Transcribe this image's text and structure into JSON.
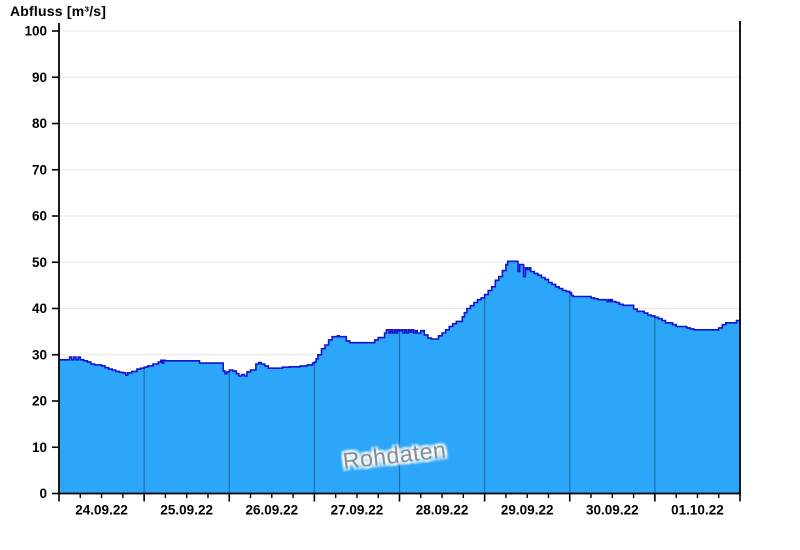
{
  "page": {
    "background": "#ffffff"
  },
  "chart_data": {
    "type": "area",
    "title": "Abfluss [m³/s]",
    "watermark": "Rohdaten",
    "ylabel": "Abfluss [m³/s]",
    "xlabel": "",
    "ylim": [
      0,
      100
    ],
    "y_tick_step": 10,
    "y_tick_labels": [
      "0",
      "10",
      "20",
      "30",
      "40",
      "50",
      "60",
      "70",
      "80",
      "90",
      "100"
    ],
    "x_tick_labels": [
      "24.09.22",
      "25.09.22",
      "26.09.22",
      "27.09.22",
      "28.09.22",
      "29.09.22",
      "30.09.22",
      "01.10.22"
    ],
    "x_days_total": 8,
    "x_minor_ticks_per_day": 4,
    "grid": "horizontal-light",
    "legend": "none",
    "colors": {
      "fill": "#2BA6F8",
      "line": "#1313CF",
      "day_separator": "#1F6FAE",
      "grid": "#E8E8E8",
      "axis": "#000000",
      "watermark": "#8C8C8C",
      "background": "#FFFFFF"
    },
    "series": [
      {
        "name": "Abfluss Rohdaten",
        "unit": "m³/s",
        "interpolation": "step-after",
        "x_unit": "hours since 24.09.22 00:00",
        "points": [
          [
            0,
            28.9
          ],
          [
            2,
            28.9
          ],
          [
            3,
            29.5
          ],
          [
            3.6,
            28.9
          ],
          [
            4.2,
            29.5
          ],
          [
            4.8,
            28.9
          ],
          [
            5.4,
            29.5
          ],
          [
            6,
            28.9
          ],
          [
            7,
            28.7
          ],
          [
            8,
            28.4
          ],
          [
            9,
            28.0
          ],
          [
            10,
            27.8
          ],
          [
            11,
            27.8
          ],
          [
            12,
            27.6
          ],
          [
            13,
            27.2
          ],
          [
            14,
            26.9
          ],
          [
            15,
            26.7
          ],
          [
            16,
            26.4
          ],
          [
            17,
            26.2
          ],
          [
            18,
            26.1
          ],
          [
            18.8,
            25.6
          ],
          [
            19.4,
            26.1
          ],
          [
            20.5,
            26.4
          ],
          [
            22,
            26.9
          ],
          [
            23,
            27.1
          ],
          [
            24,
            27.3
          ],
          [
            25,
            27.6
          ],
          [
            26.5,
            28.0
          ],
          [
            28,
            28.4
          ],
          [
            28.7,
            28.8
          ],
          [
            29.1,
            28.2
          ],
          [
            29.5,
            28.8
          ],
          [
            30,
            28.7
          ],
          [
            33,
            28.7
          ],
          [
            36,
            28.7
          ],
          [
            39,
            28.7
          ],
          [
            39.6,
            28.2
          ],
          [
            42,
            28.2
          ],
          [
            45.5,
            28.2
          ],
          [
            46.3,
            26.5
          ],
          [
            46.8,
            25.9
          ],
          [
            47.3,
            26.3
          ],
          [
            48,
            26.7
          ],
          [
            49,
            26.5
          ],
          [
            50,
            25.9
          ],
          [
            50.7,
            25.4
          ],
          [
            51.5,
            25.7
          ],
          [
            52.3,
            25.4
          ],
          [
            53,
            26.3
          ],
          [
            54,
            26.7
          ],
          [
            55.5,
            28.0
          ],
          [
            56.3,
            28.3
          ],
          [
            57,
            28.0
          ],
          [
            58,
            27.6
          ],
          [
            59,
            27.1
          ],
          [
            61,
            27.1
          ],
          [
            63,
            27.3
          ],
          [
            65,
            27.4
          ],
          [
            68,
            27.6
          ],
          [
            70,
            27.8
          ],
          [
            71.5,
            28.2
          ],
          [
            72,
            28.4
          ],
          [
            72.5,
            29.1
          ],
          [
            73,
            30.0
          ],
          [
            74,
            31.3
          ],
          [
            75,
            32.1
          ],
          [
            76,
            33.2
          ],
          [
            77,
            33.9
          ],
          [
            78,
            33.9
          ],
          [
            78.5,
            34.1
          ],
          [
            79,
            33.9
          ],
          [
            80,
            33.9
          ],
          [
            81,
            33.0
          ],
          [
            82,
            32.6
          ],
          [
            85,
            32.6
          ],
          [
            88,
            32.6
          ],
          [
            89,
            33.2
          ],
          [
            90,
            33.7
          ],
          [
            91,
            33.7
          ],
          [
            91.8,
            34.7
          ],
          [
            92.3,
            35.4
          ],
          [
            93,
            34.7
          ],
          [
            93.5,
            35.4
          ],
          [
            94,
            34.7
          ],
          [
            94.5,
            35.4
          ],
          [
            95,
            34.7
          ],
          [
            95.5,
            35.4
          ],
          [
            96,
            35.2
          ],
          [
            96.5,
            35.4
          ],
          [
            97,
            34.7
          ],
          [
            97.5,
            35.4
          ],
          [
            98,
            34.7
          ],
          [
            98.5,
            35.4
          ],
          [
            99,
            34.9
          ],
          [
            99.5,
            35.4
          ],
          [
            100,
            34.7
          ],
          [
            100.5,
            35.2
          ],
          [
            101,
            34.7
          ],
          [
            102,
            35.2
          ],
          [
            103,
            34.3
          ],
          [
            104,
            33.6
          ],
          [
            105,
            33.4
          ],
          [
            106,
            33.4
          ],
          [
            107,
            34.1
          ],
          [
            108,
            34.7
          ],
          [
            109,
            35.4
          ],
          [
            110,
            36.1
          ],
          [
            111,
            36.7
          ],
          [
            112,
            37.2
          ],
          [
            113,
            37.2
          ],
          [
            113.7,
            38.2
          ],
          [
            114.3,
            39.1
          ],
          [
            115,
            40.0
          ],
          [
            116,
            40.6
          ],
          [
            117,
            41.3
          ],
          [
            118,
            41.9
          ],
          [
            119,
            42.3
          ],
          [
            120,
            43.0
          ],
          [
            121,
            43.9
          ],
          [
            122,
            44.7
          ],
          [
            123,
            46.1
          ],
          [
            124,
            46.9
          ],
          [
            125,
            48.2
          ],
          [
            126,
            49.5
          ],
          [
            126.5,
            50.2
          ],
          [
            128,
            50.2
          ],
          [
            129,
            50.2
          ],
          [
            129.4,
            48.0
          ],
          [
            129.9,
            49.5
          ],
          [
            130.5,
            49.5
          ],
          [
            131,
            46.9
          ],
          [
            131.5,
            48.8
          ],
          [
            132,
            48.4
          ],
          [
            132.5,
            48.8
          ],
          [
            133,
            48.0
          ],
          [
            134,
            47.6
          ],
          [
            135,
            47.2
          ],
          [
            136,
            46.7
          ],
          [
            137,
            46.3
          ],
          [
            138,
            45.6
          ],
          [
            139,
            45.2
          ],
          [
            140,
            44.7
          ],
          [
            141,
            44.3
          ],
          [
            142,
            43.9
          ],
          [
            143,
            43.7
          ],
          [
            144,
            43.4
          ],
          [
            144.5,
            42.8
          ],
          [
            145,
            42.6
          ],
          [
            147,
            42.6
          ],
          [
            149,
            42.6
          ],
          [
            150,
            42.3
          ],
          [
            151,
            42.1
          ],
          [
            152,
            41.9
          ],
          [
            154,
            41.9
          ],
          [
            154.5,
            41.5
          ],
          [
            155,
            41.9
          ],
          [
            155.4,
            41.5
          ],
          [
            155.8,
            41.9
          ],
          [
            156,
            41.5
          ],
          [
            157,
            41.3
          ],
          [
            158,
            40.9
          ],
          [
            159,
            40.7
          ],
          [
            161,
            40.7
          ],
          [
            162,
            39.9
          ],
          [
            163,
            39.4
          ],
          [
            165,
            39.0
          ],
          [
            166,
            38.6
          ],
          [
            167,
            38.4
          ],
          [
            168,
            38.1
          ],
          [
            169,
            37.8
          ],
          [
            170,
            37.4
          ],
          [
            171,
            36.9
          ],
          [
            172,
            36.9
          ],
          [
            173,
            36.5
          ],
          [
            174,
            36.1
          ],
          [
            176,
            36.1
          ],
          [
            177,
            35.8
          ],
          [
            178,
            35.6
          ],
          [
            179,
            35.4
          ],
          [
            182,
            35.4
          ],
          [
            185,
            35.4
          ],
          [
            186,
            35.8
          ],
          [
            187,
            36.5
          ],
          [
            188,
            36.9
          ],
          [
            190,
            36.9
          ],
          [
            191,
            37.4
          ],
          [
            192,
            37.6
          ]
        ]
      }
    ]
  }
}
